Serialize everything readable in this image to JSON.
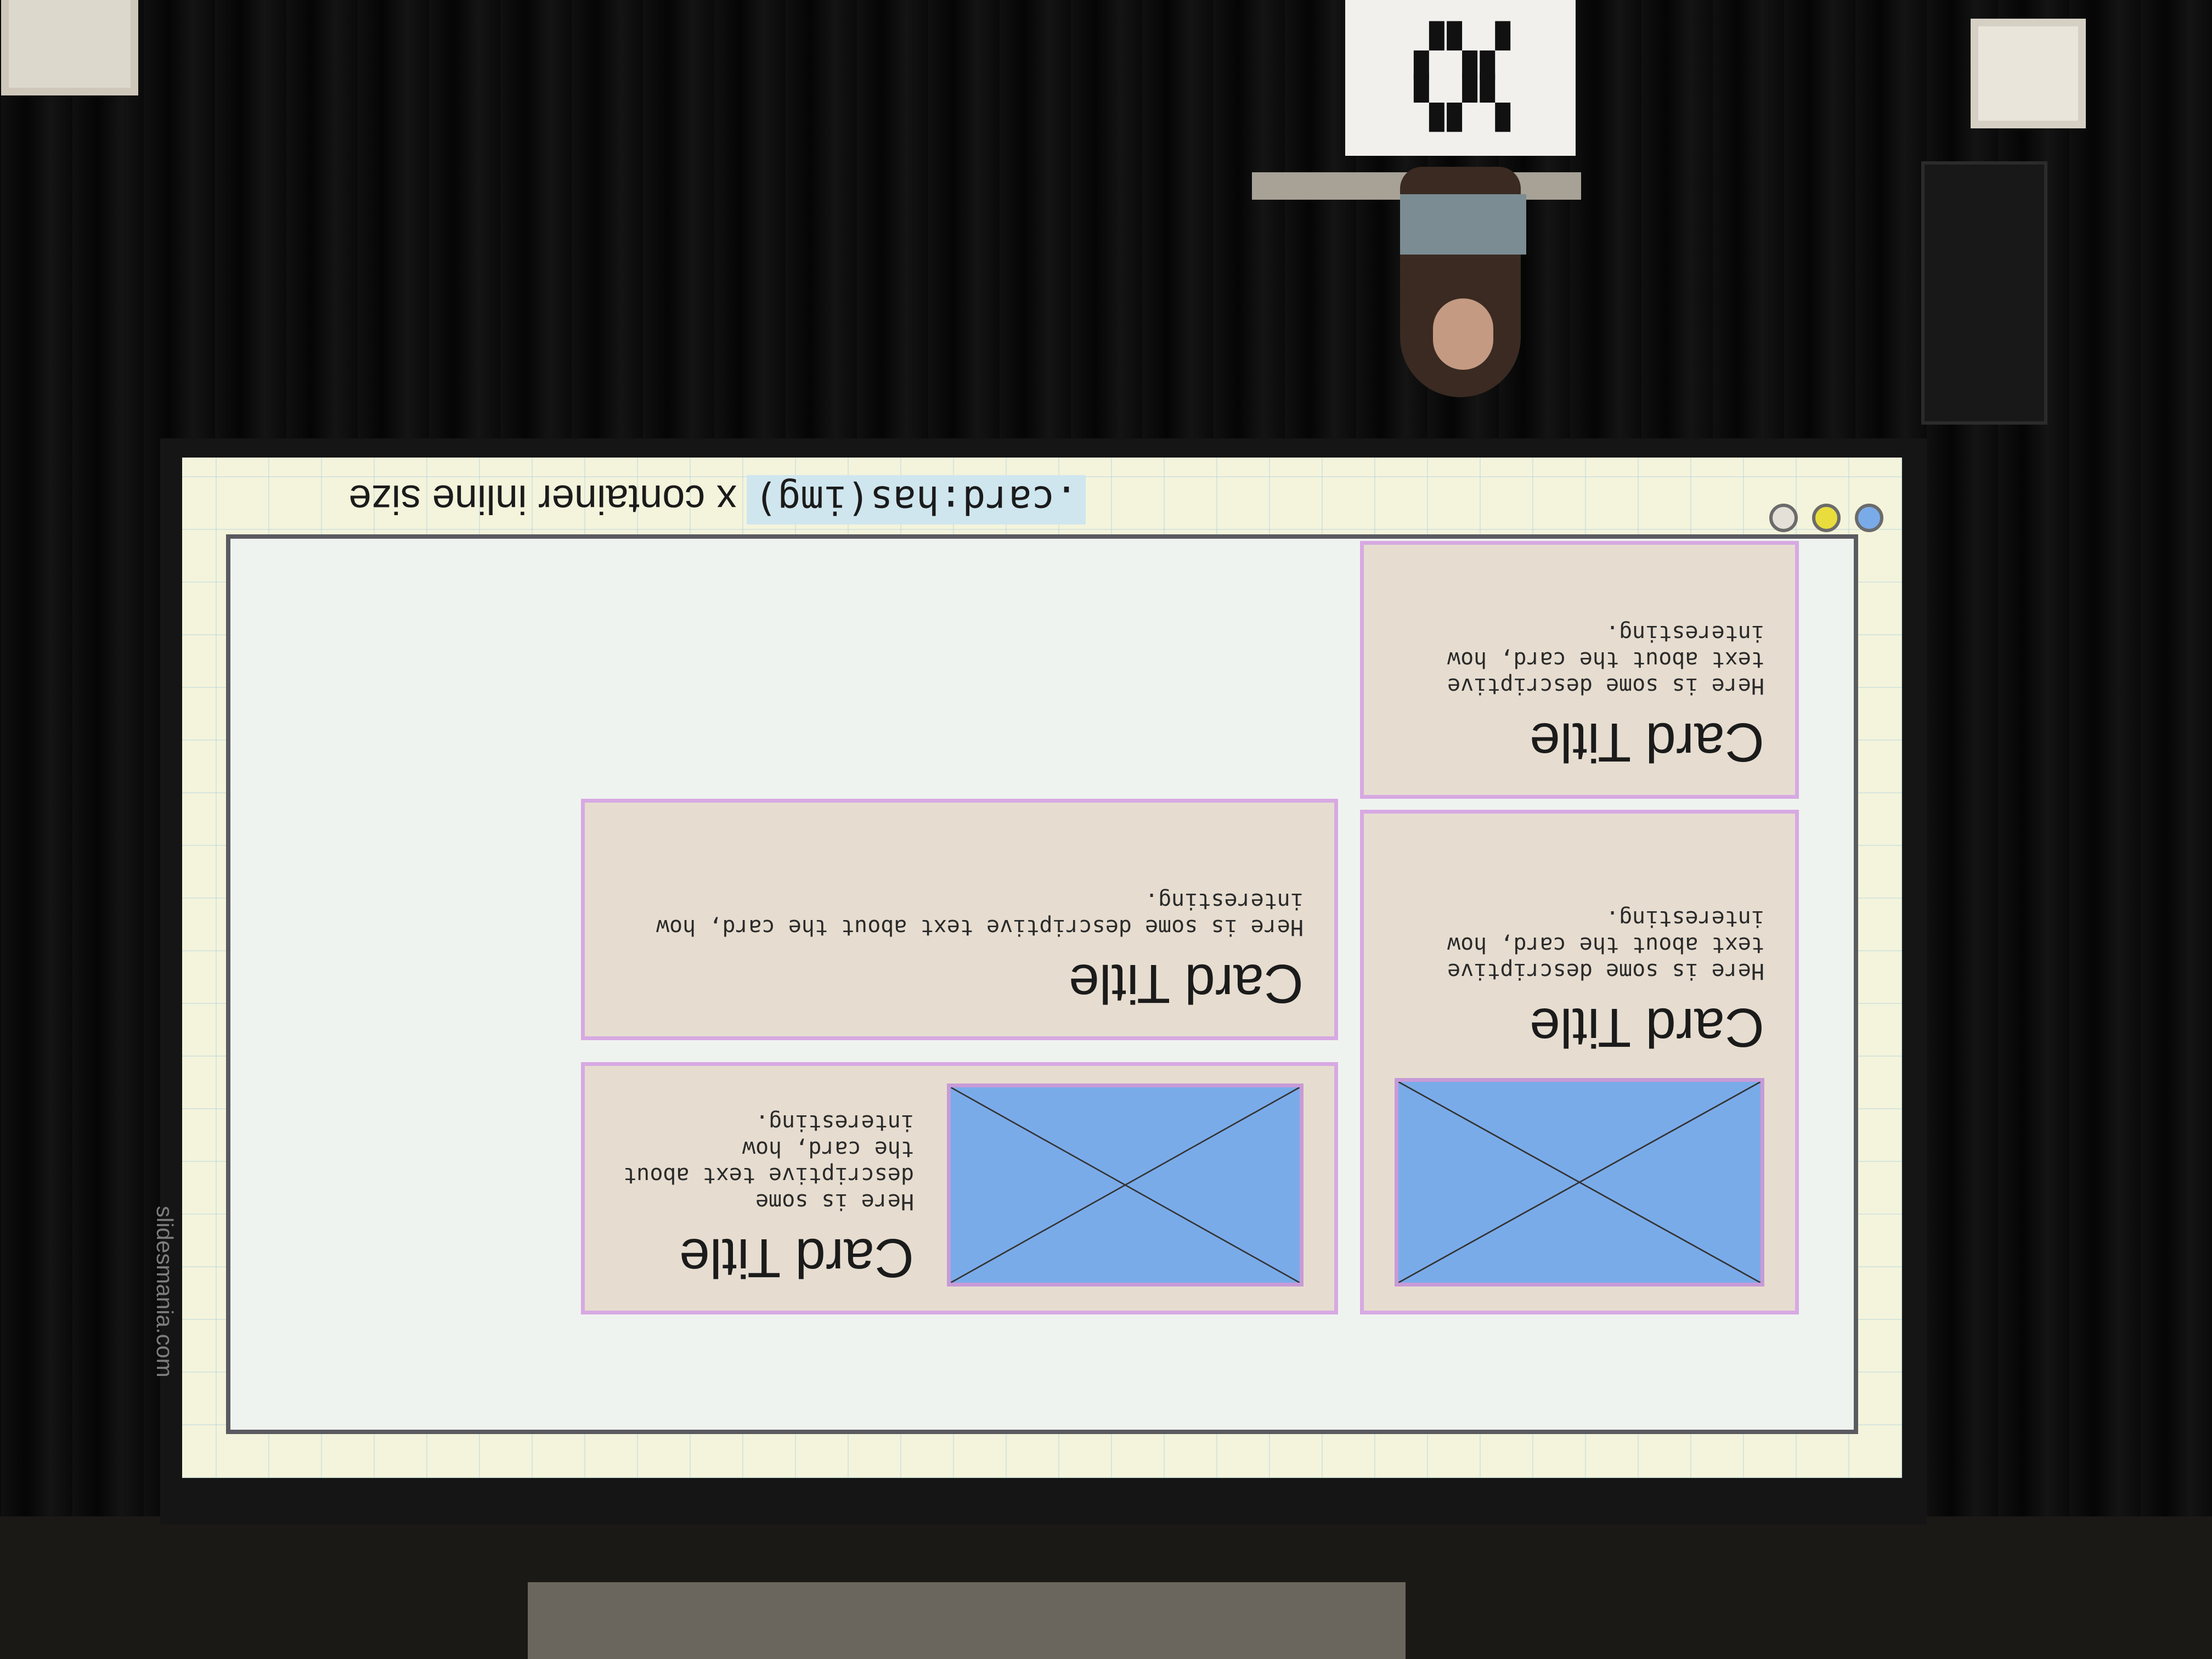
{
  "slide": {
    "brand": "slidesmania.com",
    "caption_code": ".card:has(img)",
    "caption_text": "x container inline size",
    "nav_dots": [
      "#7aabe9",
      "#e8dd3c",
      "#e4e0d8"
    ],
    "cards": [
      {
        "title": "Card Title",
        "text": "Here is some descriptive text about the card, how interesting.",
        "has_image": true
      },
      {
        "title": "Card Title",
        "text": "Here is some descriptive text about the card, how interesting.",
        "has_image": false
      },
      {
        "title": "Card Title",
        "text": "Here is some descriptive text about the card, how interesting.",
        "has_image": true
      },
      {
        "title": "Card Title",
        "text": "Here is some descriptive text about the card, how interesting.",
        "has_image": false
      }
    ]
  },
  "photo": {
    "orientation": "upside-down",
    "colors": {
      "screen_bg": "#f4f4dc",
      "slide_bg": "#eff3ef",
      "card_bg": "#e6ddd0",
      "card_border": "#d7a9e2",
      "placeholder": "#7aabe9"
    }
  }
}
